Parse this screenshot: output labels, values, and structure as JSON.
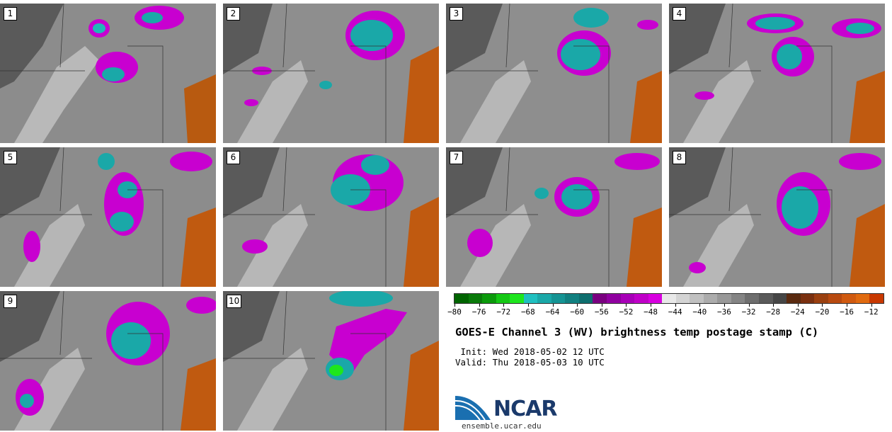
{
  "panels": [
    "1",
    "2",
    "3",
    "4",
    "5",
    "6",
    "7",
    "8",
    "9",
    "10"
  ],
  "colorbar": {
    "colors": [
      "#006400",
      "#0a7a0a",
      "#0b9a0b",
      "#14c814",
      "#1ee61e",
      "#20c0c0",
      "#1aa8a8",
      "#159494",
      "#118080",
      "#0e6e6e",
      "#7a0080",
      "#9000a0",
      "#a800b8",
      "#c000c8",
      "#d800e0",
      "#e8e8e8",
      "#d4d4d4",
      "#c0c0c0",
      "#acacac",
      "#989898",
      "#848484",
      "#6e6e6e",
      "#5a5a5a",
      "#464646",
      "#5a2a10",
      "#7a3010",
      "#9a4010",
      "#b84a10",
      "#d05a10",
      "#e06a10",
      "#c83800"
    ],
    "min": -80,
    "max": -10,
    "tick_values": [
      -80,
      -76,
      -72,
      -68,
      -64,
      -60,
      -56,
      -52,
      -48,
      -44,
      -40,
      -36,
      -32,
      -28,
      -24,
      -20,
      -16,
      -12
    ],
    "tick_labels": [
      "−80",
      "−76",
      "−72",
      "−68",
      "−64",
      "−60",
      "−56",
      "−52",
      "−48",
      "−44",
      "−40",
      "−36",
      "−32",
      "−28",
      "−24",
      "−20",
      "−16",
      "−12"
    ]
  },
  "title": "GOES-E Channel 3 (WV) brightness temp postage stamp (C)",
  "init": " Init: Wed 2018-05-02 12 UTC",
  "valid": "Valid: Thu 2018-05-03 10 UTC",
  "logo_text": "NCAR",
  "site": "ensemble.ucar.edu"
}
